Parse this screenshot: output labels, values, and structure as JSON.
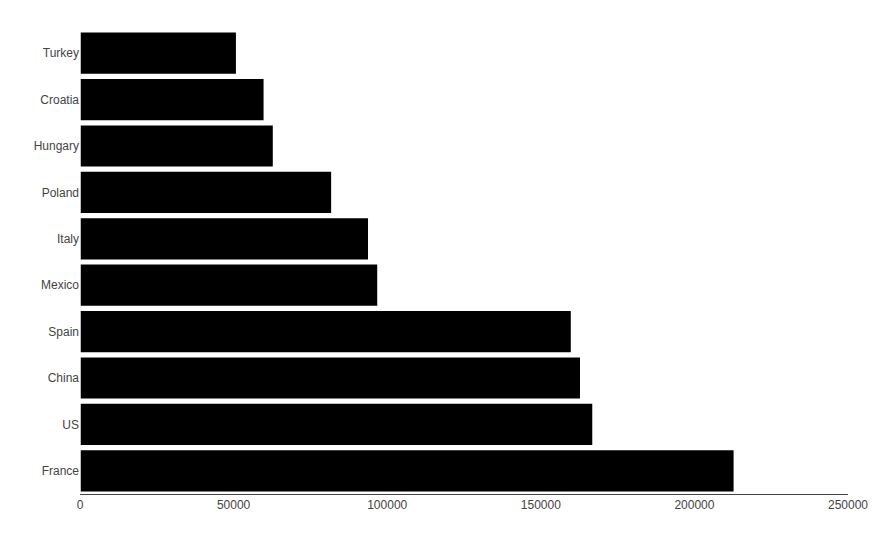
{
  "chart_data": {
    "type": "bar",
    "orientation": "horizontal",
    "categories": [
      "France",
      "US",
      "China",
      "Spain",
      "Mexico",
      "Italy",
      "Poland",
      "Hungary",
      "Croatia",
      "Turkey"
    ],
    "values": [
      213000,
      167000,
      163000,
      160000,
      97000,
      94000,
      82000,
      63000,
      60000,
      51000
    ],
    "color": "#000000",
    "xlim": [
      0,
      250000
    ],
    "xticks": [
      0,
      50000,
      100000,
      150000,
      200000,
      250000
    ],
    "grid": false
  }
}
